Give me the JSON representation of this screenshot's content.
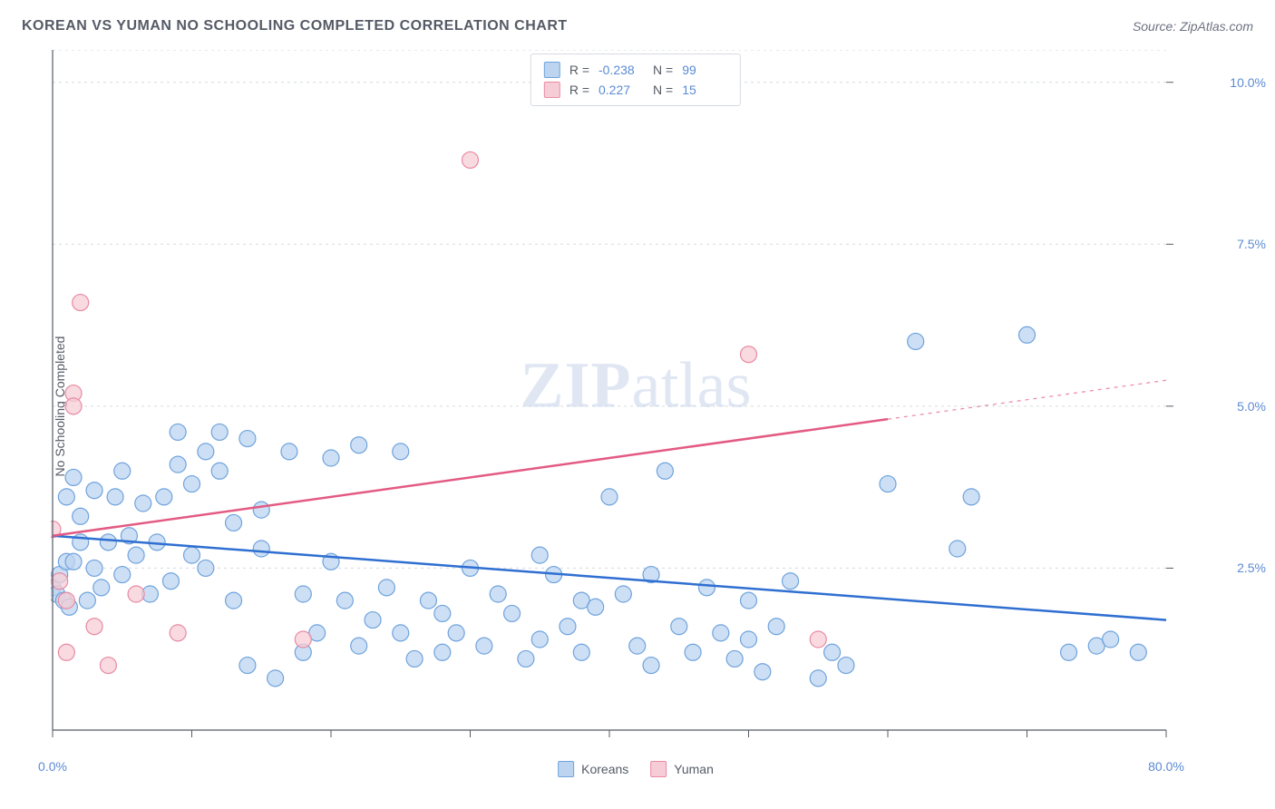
{
  "header": {
    "title": "KOREAN VS YUMAN NO SCHOOLING COMPLETED CORRELATION CHART",
    "source": "Source: ZipAtlas.com"
  },
  "watermark": {
    "zip": "ZIP",
    "atlas": "atlas"
  },
  "chart": {
    "type": "scatter",
    "background_color": "#ffffff",
    "grid_color": "#d6dae0",
    "axis_color": "#555b66",
    "tick_color": "#555b66",
    "label_color": "#5b8bd4",
    "title_fontsize": 16,
    "label_fontsize": 14,
    "ylabel": "No Schooling Completed",
    "xlim": [
      0,
      80
    ],
    "ylim": [
      0,
      10.5
    ],
    "x_axis": {
      "min_label": "0.0%",
      "max_label": "80.0%",
      "ticks": [
        0,
        10,
        20,
        30,
        40,
        50,
        60,
        70,
        80
      ]
    },
    "y_axis": {
      "ticks": [
        2.5,
        5.0,
        7.5,
        10.0
      ],
      "tick_labels": [
        "2.5%",
        "5.0%",
        "7.5%",
        "10.0%"
      ]
    },
    "series": [
      {
        "name": "Koreans",
        "color_fill": "#bcd4f0",
        "color_stroke": "#6fa3dd",
        "marker_radius": 9,
        "marker_opacity": 0.75,
        "trend_line": {
          "x1": 0,
          "y1": 3.0,
          "x2": 80,
          "y2": 1.7,
          "color": "#2f6fd1",
          "width": 2.5
        },
        "points": [
          [
            0,
            2.2
          ],
          [
            0.3,
            2.1
          ],
          [
            0.5,
            2.4
          ],
          [
            0.8,
            2.0
          ],
          [
            1,
            2.6
          ],
          [
            1,
            3.6
          ],
          [
            1.2,
            1.9
          ],
          [
            1.5,
            3.9
          ],
          [
            1.5,
            2.6
          ],
          [
            2,
            2.9
          ],
          [
            2,
            3.3
          ],
          [
            2.5,
            2.0
          ],
          [
            3,
            2.5
          ],
          [
            3,
            3.7
          ],
          [
            3.5,
            2.2
          ],
          [
            4,
            2.9
          ],
          [
            4.5,
            3.6
          ],
          [
            5,
            2.4
          ],
          [
            5,
            4.0
          ],
          [
            5.5,
            3.0
          ],
          [
            6,
            2.7
          ],
          [
            6.5,
            3.5
          ],
          [
            7,
            2.1
          ],
          [
            7.5,
            2.9
          ],
          [
            8,
            3.6
          ],
          [
            8.5,
            2.3
          ],
          [
            9,
            4.1
          ],
          [
            9,
            4.6
          ],
          [
            10,
            3.8
          ],
          [
            10,
            2.7
          ],
          [
            11,
            2.5
          ],
          [
            11,
            4.3
          ],
          [
            12,
            4.0
          ],
          [
            12,
            4.6
          ],
          [
            13,
            3.2
          ],
          [
            13,
            2.0
          ],
          [
            14,
            4.5
          ],
          [
            14,
            1.0
          ],
          [
            15,
            2.8
          ],
          [
            15,
            3.4
          ],
          [
            16,
            0.8
          ],
          [
            17,
            4.3
          ],
          [
            18,
            2.1
          ],
          [
            18,
            1.2
          ],
          [
            19,
            1.5
          ],
          [
            20,
            2.6
          ],
          [
            20,
            4.2
          ],
          [
            21,
            2.0
          ],
          [
            22,
            1.3
          ],
          [
            22,
            4.4
          ],
          [
            23,
            1.7
          ],
          [
            24,
            2.2
          ],
          [
            25,
            1.5
          ],
          [
            25,
            4.3
          ],
          [
            26,
            1.1
          ],
          [
            27,
            2.0
          ],
          [
            28,
            1.2
          ],
          [
            28,
            1.8
          ],
          [
            29,
            1.5
          ],
          [
            30,
            2.5
          ],
          [
            31,
            1.3
          ],
          [
            32,
            2.1
          ],
          [
            33,
            1.8
          ],
          [
            34,
            1.1
          ],
          [
            35,
            1.4
          ],
          [
            35,
            2.7
          ],
          [
            36,
            2.4
          ],
          [
            37,
            1.6
          ],
          [
            38,
            1.2
          ],
          [
            38,
            2.0
          ],
          [
            39,
            1.9
          ],
          [
            40,
            3.6
          ],
          [
            41,
            2.1
          ],
          [
            42,
            1.3
          ],
          [
            43,
            1.0
          ],
          [
            43,
            2.4
          ],
          [
            44,
            4.0
          ],
          [
            45,
            1.6
          ],
          [
            46,
            1.2
          ],
          [
            47,
            2.2
          ],
          [
            48,
            1.5
          ],
          [
            49,
            1.1
          ],
          [
            50,
            1.4
          ],
          [
            50,
            2.0
          ],
          [
            51,
            0.9
          ],
          [
            52,
            1.6
          ],
          [
            53,
            2.3
          ],
          [
            55,
            0.8
          ],
          [
            56,
            1.2
          ],
          [
            57,
            1.0
          ],
          [
            60,
            3.8
          ],
          [
            62,
            6.0
          ],
          [
            65,
            2.8
          ],
          [
            66,
            3.6
          ],
          [
            70,
            6.1
          ],
          [
            73,
            1.2
          ],
          [
            75,
            1.3
          ],
          [
            76,
            1.4
          ],
          [
            78,
            1.2
          ]
        ]
      },
      {
        "name": "Yuman",
        "color_fill": "#f6cdd6",
        "color_stroke": "#e88aa2",
        "marker_radius": 9,
        "marker_opacity": 0.75,
        "trend_line": {
          "x1": 0,
          "y1": 3.0,
          "x2": 60,
          "y2": 4.8,
          "color": "#e35a82",
          "width": 2.5,
          "dash_extend": {
            "x2": 80,
            "y2": 5.4
          }
        },
        "points": [
          [
            0,
            3.1
          ],
          [
            0.5,
            2.3
          ],
          [
            1,
            2.0
          ],
          [
            1,
            1.2
          ],
          [
            1.5,
            5.2
          ],
          [
            1.5,
            5.0
          ],
          [
            2,
            6.6
          ],
          [
            3,
            1.6
          ],
          [
            4,
            1.0
          ],
          [
            6,
            2.1
          ],
          [
            9,
            1.5
          ],
          [
            18,
            1.4
          ],
          [
            30,
            8.8
          ],
          [
            50,
            5.8
          ],
          [
            55,
            1.4
          ]
        ]
      }
    ],
    "stats": [
      {
        "swatch_fill": "#bcd4f0",
        "swatch_stroke": "#6fa3dd",
        "r_label": "R =",
        "r": "-0.238",
        "n_label": "N =",
        "n": "99"
      },
      {
        "swatch_fill": "#f6cdd6",
        "swatch_stroke": "#e88aa2",
        "r_label": "R =",
        "r": "0.227",
        "n_label": "N =",
        "n": "15"
      }
    ],
    "bottom_legend": [
      {
        "swatch_fill": "#bcd4f0",
        "swatch_stroke": "#6fa3dd",
        "label": "Koreans"
      },
      {
        "swatch_fill": "#f6cdd6",
        "swatch_stroke": "#e88aa2",
        "label": "Yuman"
      }
    ]
  }
}
